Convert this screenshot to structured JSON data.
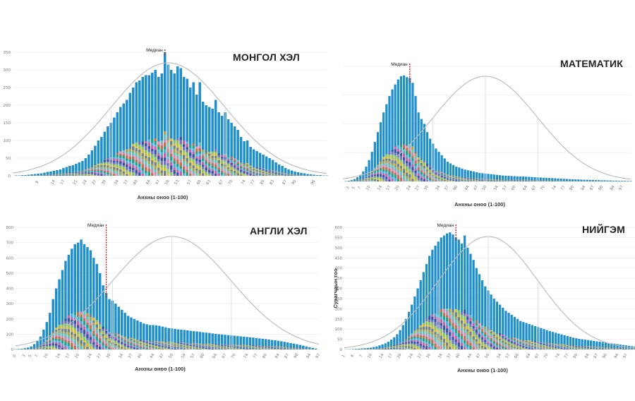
{
  "chart_data": [
    {
      "type": "bar",
      "title": "МОНГОЛ ХЭЛ",
      "xlabel": "Анхны оноо (1-100)",
      "ylabel": "",
      "median_label": "Медиан",
      "median_x": 49,
      "ylim": [
        0,
        350
      ],
      "yticks": [
        0,
        50,
        100,
        150,
        200,
        250,
        300,
        350
      ],
      "xlim": [
        1,
        100
      ],
      "xticks": [
        9,
        14,
        17,
        21,
        24,
        27,
        30,
        34,
        37,
        40,
        44,
        47,
        50,
        53,
        57,
        60,
        63,
        67,
        70,
        74,
        77,
        80,
        83,
        87,
        90,
        96
      ],
      "x_start": 2,
      "values": [
        1,
        1,
        2,
        2,
        3,
        4,
        5,
        6,
        7,
        9,
        11,
        12,
        14,
        16,
        18,
        22,
        25,
        28,
        30,
        34,
        38,
        42,
        50,
        60,
        72,
        85,
        100,
        110,
        125,
        140,
        150,
        165,
        180,
        195,
        205,
        215,
        235,
        250,
        265,
        270,
        280,
        285,
        285,
        292,
        300,
        280,
        290,
        350,
        315,
        300,
        290,
        310,
        305,
        280,
        275,
        250,
        265,
        230,
        265,
        210,
        200,
        195,
        190,
        215,
        180,
        170,
        180,
        160,
        150,
        140,
        130,
        110,
        98,
        100,
        82,
        75,
        70,
        65,
        60,
        55,
        50,
        45,
        38,
        32,
        28,
        22,
        18,
        15,
        12,
        10,
        8,
        7,
        5,
        4,
        3,
        2,
        2,
        1,
        1
      ],
      "curve": {
        "peak": 320,
        "mean": 50,
        "sd": 18
      }
    },
    {
      "type": "bar",
      "title": "МАТЕМАТИК",
      "xlabel": "Анхны оноо (1-100)",
      "ylabel": "",
      "median_label": "Медиан",
      "median_x": 24,
      "ylim": [
        0,
        700
      ],
      "xlim": [
        1,
        100
      ],
      "xticks": [
        3,
        5,
        7,
        10,
        14,
        17,
        20,
        24,
        27,
        30,
        34,
        37,
        40,
        44,
        47,
        50,
        54,
        57,
        60,
        64,
        67,
        70,
        74,
        77,
        80,
        84,
        87,
        90,
        94,
        97
      ],
      "x_start": 2,
      "values": [
        2,
        4,
        8,
        14,
        25,
        40,
        60,
        90,
        130,
        180,
        240,
        300,
        360,
        420,
        470,
        520,
        560,
        590,
        620,
        640,
        645,
        635,
        630,
        600,
        520,
        420,
        380,
        350,
        300,
        260,
        230,
        200,
        180,
        160,
        140,
        120,
        110,
        100,
        90,
        85,
        78,
        72,
        68,
        64,
        60,
        56,
        52,
        50,
        48,
        46,
        44,
        42,
        40,
        38,
        36,
        35,
        34,
        33,
        32,
        31,
        30,
        30,
        29,
        28,
        27,
        26,
        25,
        24,
        23,
        22,
        21,
        20,
        19,
        18,
        17,
        16,
        15,
        14,
        13,
        12,
        12,
        11,
        10,
        10,
        9,
        9,
        8,
        8,
        7,
        7,
        6,
        6,
        5,
        5,
        4,
        4,
        4,
        3,
        3
      ],
      "curve": {
        "peak": 640,
        "mean": 50,
        "sd": 18
      }
    },
    {
      "type": "bar",
      "title": "АНГЛИ ХЭЛ",
      "xlabel": "Анхны оноо (1-100)",
      "ylabel": "",
      "median_label": "Медиан",
      "median_x": 29,
      "ylim": [
        0,
        800
      ],
      "yticks": [
        0,
        100,
        200,
        300,
        400,
        500,
        600,
        700,
        800
      ],
      "xlim": [
        0,
        97
      ],
      "xticks": [
        0,
        3,
        5,
        7,
        10,
        14,
        17,
        20,
        24,
        27,
        30,
        34,
        37,
        40,
        44,
        47,
        50,
        54,
        57,
        60,
        64,
        67,
        70,
        74,
        77,
        80,
        84,
        87,
        90,
        94,
        97
      ],
      "x_start": 0,
      "values": [
        2,
        3,
        5,
        8,
        12,
        20,
        35,
        55,
        85,
        130,
        180,
        240,
        330,
        400,
        460,
        520,
        580,
        620,
        660,
        690,
        700,
        720,
        690,
        670,
        650,
        600,
        560,
        500,
        420,
        370,
        330,
        320,
        300,
        280,
        260,
        240,
        220,
        210,
        200,
        190,
        180,
        170,
        165,
        160,
        160,
        158,
        155,
        150,
        145,
        140,
        138,
        135,
        132,
        130,
        128,
        125,
        122,
        120,
        118,
        115,
        112,
        110,
        108,
        105,
        102,
        100,
        98,
        96,
        94,
        92,
        90,
        88,
        86,
        84,
        82,
        80,
        78,
        75,
        72,
        70,
        68,
        65,
        62,
        60,
        57,
        54,
        50,
        46,
        42,
        38,
        34,
        30,
        25,
        20,
        15,
        10,
        6
      ],
      "curve": {
        "peak": 740,
        "mean": 50,
        "sd": 19
      }
    },
    {
      "type": "bar",
      "title": "НИЙГЭМ",
      "xlabel": "Анхны оноо (1-100)",
      "ylabel": "Сурагчдын тоо",
      "median_label": "Медиан",
      "median_x": 39,
      "ylim": [
        0,
        600
      ],
      "yticks": [
        0,
        50,
        100,
        150,
        200,
        250,
        300,
        350,
        400,
        450,
        500,
        550,
        600
      ],
      "xlim": [
        1,
        100
      ],
      "xticks": [
        1,
        4,
        7,
        10,
        14,
        17,
        20,
        24,
        27,
        30,
        34,
        37,
        40,
        44,
        47,
        50,
        54,
        57,
        60,
        64,
        67,
        70,
        74,
        77,
        80,
        84,
        87,
        90,
        94,
        97
      ],
      "x_start": 2,
      "values": [
        1,
        1,
        2,
        3,
        4,
        5,
        6,
        7,
        9,
        12,
        15,
        20,
        25,
        30,
        38,
        48,
        60,
        75,
        95,
        120,
        150,
        185,
        220,
        260,
        300,
        340,
        380,
        420,
        460,
        490,
        510,
        530,
        550,
        560,
        570,
        575,
        565,
        550,
        540,
        520,
        560,
        500,
        470,
        440,
        400,
        370,
        340,
        310,
        290,
        270,
        250,
        235,
        220,
        205,
        190,
        180,
        170,
        160,
        150,
        140,
        135,
        130,
        125,
        120,
        115,
        110,
        105,
        100,
        95,
        90,
        86,
        82,
        78,
        74,
        70,
        66,
        62,
        58,
        55,
        52,
        50,
        48,
        46,
        44,
        42,
        40,
        38,
        36,
        34,
        32,
        30,
        28,
        26,
        24,
        22,
        20,
        18,
        16,
        14
      ],
      "curve": {
        "peak": 555,
        "mean": 50,
        "sd": 17
      }
    }
  ],
  "palette": {
    "bar_blue": "#1f8fcb",
    "curve": "#b9b9b9",
    "grid": "#ececec",
    "median_line": "#d22020",
    "stack_colors": [
      "#f3c322",
      "#9bd14a",
      "#8a6fc7",
      "#3c4b9e",
      "#e85aa0",
      "#5bb8e6",
      "#2aa37a",
      "#e46b3a",
      "#f08fb0",
      "#6fd0c0",
      "#c9a63c",
      "#7f7f7f"
    ]
  }
}
